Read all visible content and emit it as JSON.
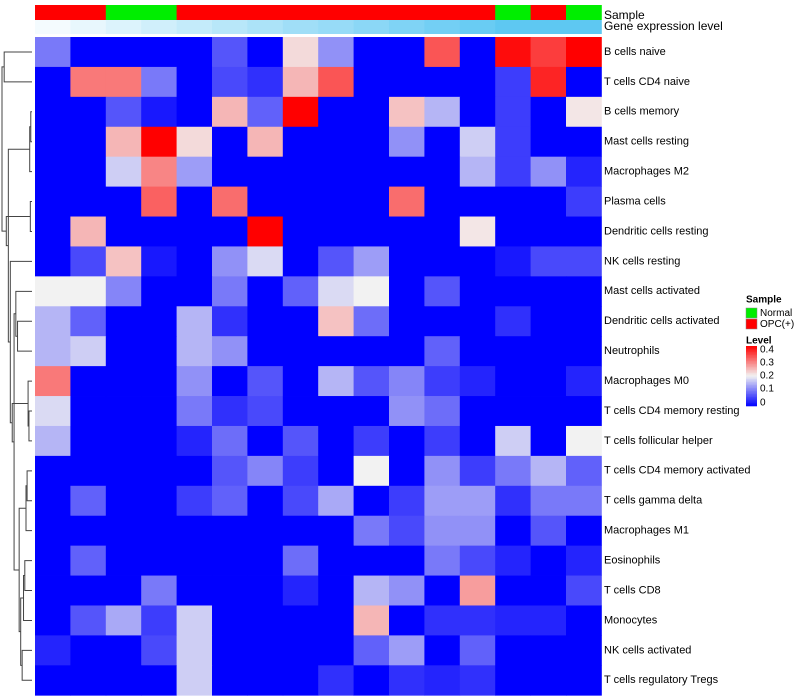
{
  "chart_data": {
    "type": "heatmap",
    "annotation_track_labels": {
      "sample": "Sample",
      "gene_expression": "Gene expression level"
    },
    "columns": [
      {
        "sample": "OPC(+)",
        "gene_expression_level": 0.0
      },
      {
        "sample": "OPC(+)",
        "gene_expression_level": 0.08
      },
      {
        "sample": "Normal",
        "gene_expression_level": 0.16
      },
      {
        "sample": "Normal",
        "gene_expression_level": 0.24
      },
      {
        "sample": "OPC(+)",
        "gene_expression_level": 0.32
      },
      {
        "sample": "OPC(+)",
        "gene_expression_level": 0.4
      },
      {
        "sample": "OPC(+)",
        "gene_expression_level": 0.48
      },
      {
        "sample": "OPC(+)",
        "gene_expression_level": 0.56
      },
      {
        "sample": "OPC(+)",
        "gene_expression_level": 0.62
      },
      {
        "sample": "OPC(+)",
        "gene_expression_level": 0.7
      },
      {
        "sample": "OPC(+)",
        "gene_expression_level": 0.78
      },
      {
        "sample": "OPC(+)",
        "gene_expression_level": 0.86
      },
      {
        "sample": "OPC(+)",
        "gene_expression_level": 0.93
      },
      {
        "sample": "Normal",
        "gene_expression_level": 1.0
      },
      {
        "sample": "OPC(+)",
        "gene_expression_level": 1.0
      },
      {
        "sample": "Normal",
        "gene_expression_level": 1.0
      }
    ],
    "rows": [
      "B cells naive",
      "T cells CD4 naive",
      "B cells memory",
      "Mast cells resting",
      "Macrophages M2",
      "Plasma cells",
      "Dendritic cells resting",
      "NK cells resting",
      "Mast cells activated",
      "Dendritic cells activated",
      "Neutrophils",
      "Macrophages M0",
      "T cells CD4 memory resting",
      "T cells follicular helper",
      "T cells CD4 memory activated",
      "T cells gamma delta",
      "Macrophages M1",
      "Eosinophils",
      "T cells CD8",
      "Monocytes",
      "NK cells activated",
      "T cells regulatory  Tregs"
    ],
    "values": [
      [
        0.1,
        0,
        0,
        0,
        0,
        0.07,
        0,
        0.22,
        0.12,
        0,
        0,
        0.33,
        0,
        0.39,
        0.35,
        0.4
      ],
      [
        0,
        0.3,
        0.3,
        0.1,
        0,
        0.06,
        0.04,
        0.25,
        0.33,
        0,
        0,
        0,
        0,
        0.05,
        0.37,
        0
      ],
      [
        0,
        0,
        0.07,
        0.02,
        0,
        0.25,
        0.08,
        0.4,
        0,
        0,
        0.24,
        0.15,
        0,
        0.05,
        0,
        0.21
      ],
      [
        0,
        0,
        0.25,
        0.4,
        0.22,
        0,
        0.25,
        0,
        0,
        0,
        0.12,
        0,
        0.17,
        0.05,
        0,
        0
      ],
      [
        0,
        0,
        0.17,
        0.29,
        0.13,
        0,
        0,
        0,
        0,
        0,
        0,
        0,
        0.15,
        0.05,
        0.12,
        0.03
      ],
      [
        0,
        0,
        0,
        0.32,
        0,
        0.31,
        0,
        0,
        0,
        0,
        0.31,
        0,
        0,
        0,
        0,
        0.05
      ],
      [
        0,
        0.25,
        0,
        0,
        0,
        0,
        0.4,
        0,
        0,
        0,
        0,
        0,
        0.21,
        0,
        0,
        0
      ],
      [
        0,
        0.06,
        0.24,
        0.02,
        0,
        0.12,
        0.18,
        0,
        0.07,
        0.13,
        0,
        0,
        0,
        0.02,
        0.06,
        0.06
      ],
      [
        0.2,
        0.2,
        0.11,
        0,
        0,
        0.1,
        0,
        0.08,
        0.18,
        0.2,
        0,
        0.07,
        0,
        0,
        0,
        0
      ],
      [
        0.15,
        0.08,
        0,
        0,
        0.15,
        0.04,
        0,
        0,
        0.24,
        0.09,
        0,
        0,
        0,
        0.04,
        0,
        0
      ],
      [
        0.15,
        0.17,
        0,
        0,
        0.15,
        0.12,
        0,
        0,
        0,
        0,
        0,
        0.08,
        0,
        0,
        0,
        0
      ],
      [
        0.3,
        0,
        0,
        0,
        0.12,
        0,
        0.07,
        0,
        0.15,
        0.07,
        0.11,
        0.05,
        0.03,
        0,
        0,
        0.03
      ],
      [
        0.18,
        0,
        0,
        0,
        0.1,
        0.04,
        0.06,
        0,
        0,
        0,
        0.12,
        0.09,
        0,
        0,
        0,
        0
      ],
      [
        0.15,
        0,
        0,
        0,
        0.03,
        0.09,
        0,
        0.07,
        0,
        0.05,
        0,
        0.05,
        0,
        0.17,
        0,
        0.2
      ],
      [
        0,
        0,
        0,
        0,
        0,
        0.07,
        0.11,
        0.05,
        0,
        0.2,
        0,
        0.12,
        0.05,
        0.1,
        0.15,
        0.08
      ],
      [
        0,
        0.08,
        0,
        0,
        0.05,
        0.08,
        0,
        0.06,
        0.14,
        0,
        0.05,
        0.13,
        0.13,
        0.04,
        0.1,
        0.1
      ],
      [
        0,
        0,
        0,
        0,
        0,
        0,
        0,
        0,
        0,
        0.1,
        0.06,
        0.12,
        0.12,
        0,
        0.07,
        0
      ],
      [
        0,
        0.08,
        0,
        0,
        0,
        0,
        0,
        0.09,
        0,
        0,
        0,
        0.1,
        0.06,
        0.03,
        0,
        0.03
      ],
      [
        0,
        0,
        0,
        0.1,
        0,
        0,
        0,
        0.03,
        0,
        0.15,
        0.12,
        0,
        0.27,
        0,
        0,
        0.06
      ],
      [
        0,
        0.07,
        0.14,
        0.05,
        0.17,
        0,
        0,
        0,
        0,
        0.25,
        0,
        0.04,
        0.04,
        0.03,
        0.03,
        0
      ],
      [
        0.03,
        0,
        0,
        0.06,
        0.17,
        0,
        0,
        0,
        0,
        0.08,
        0.13,
        0,
        0.08,
        0,
        0,
        0
      ],
      [
        0,
        0,
        0,
        0,
        0.17,
        0,
        0,
        0,
        0.04,
        0,
        0.04,
        0.03,
        0.04,
        0,
        0,
        0
      ]
    ],
    "color_range": [
      0,
      0.4
    ],
    "legend": {
      "sample_title": "Sample",
      "sample_items": [
        {
          "label": "Normal",
          "color": "#00ee00"
        },
        {
          "label": "OPC(+)",
          "color": "#ff0000"
        }
      ],
      "level_title": "Level",
      "level_ticks": [
        "0.4",
        "0.3",
        "0.2",
        "0.1",
        "0"
      ],
      "position": "right"
    },
    "colors": {
      "low": "#0000ff",
      "mid": "#f2f2f2",
      "high": "#ff0000",
      "expr_low": "#f4fbfe",
      "expr_high": "#5ec8f2",
      "dendrogram": "#444444"
    },
    "dendrogram": {
      "merges": [
        [
          -3,
          -4
        ],
        [
          -6,
          -7
        ],
        [
          1,
          -5
        ],
        [
          -13,
          -14
        ],
        [
          4,
          -12
        ],
        [
          -15,
          -16
        ],
        [
          6,
          -17
        ],
        [
          -18,
          -19
        ],
        [
          8,
          -20
        ],
        [
          -21,
          -22
        ],
        [
          10,
          9
        ],
        [
          7,
          11
        ],
        [
          -10,
          -11
        ],
        [
          13,
          -9
        ],
        [
          12,
          14
        ],
        [
          5,
          15
        ],
        [
          -8,
          16
        ],
        [
          3,
          17
        ],
        [
          2,
          18
        ],
        [
          -1,
          -2
        ],
        [
          20,
          19
        ]
      ]
    }
  }
}
